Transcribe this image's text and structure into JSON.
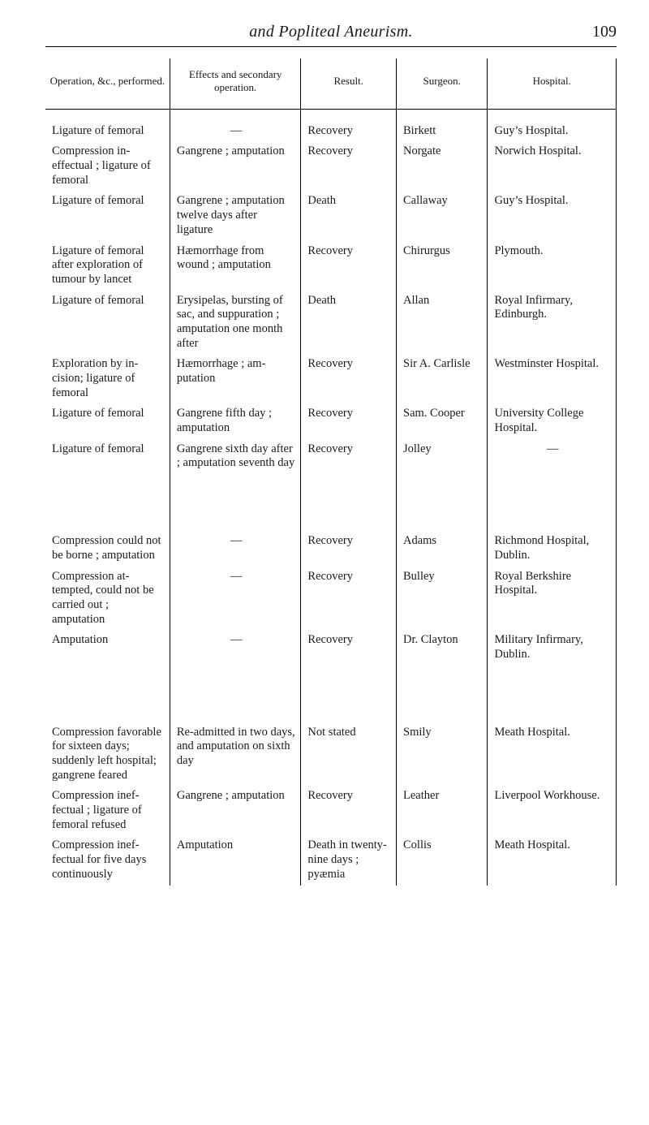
{
  "page": {
    "running_title": "and Popliteal Aneurism.",
    "page_number": "109"
  },
  "table": {
    "headers": {
      "operation": "Operation, &c., performed.",
      "effects": "Effects and secondary operation.",
      "result": "Result.",
      "surgeon": "Surgeon.",
      "hospital": "Hospital."
    },
    "rows": [
      {
        "operation": "Ligature of femoral",
        "effects": "—",
        "result": "Recovery",
        "surgeon": "Birkett",
        "hospital": "Guy’s Hospital."
      },
      {
        "operation": "Compression in­effectual ; ligature of femoral",
        "effects": "Gangrene ; amputa­tion",
        "result": "Recovery",
        "surgeon": "Norgate",
        "hospital": "Norwich Hospital."
      },
      {
        "operation": "Ligature of femoral",
        "effects": "Gangrene ; amputa­tion twelve days after ligature",
        "result": "Death",
        "surgeon": "Callaway",
        "hospital": "Guy’s Hospital."
      },
      {
        "operation": "Ligature of femoral after exploration of tumour by lancet",
        "effects": "Hæmorrhage from wound ; amputa­tion",
        "result": "Recovery",
        "surgeon": "Chirurgus",
        "hospital": "Plymouth."
      },
      {
        "operation": "Ligature of femoral",
        "effects": "Erysipelas, bursting of sac, and suppu­ration ; amputa­tion one month after",
        "result": "Death",
        "surgeon": "Allan",
        "hospital": "Royal Infirmary, Edinburgh."
      },
      {
        "operation": "Exploration by in­cision; ligature of femoral",
        "effects": "Hæmorrhage ; am­putation",
        "result": "Recovery",
        "surgeon": "Sir A. Carlisle",
        "hospital": "Westminster Hos­pital."
      },
      {
        "operation": "Ligature of femoral",
        "effects": "Gangrene fifth day ; amputation",
        "result": "Recovery",
        "surgeon": "Sam. Cooper",
        "hospital": "University College Hospital."
      },
      {
        "operation": "Ligature of femoral",
        "effects": "Gangrene sixth day after ; amputation seventh day",
        "result": "Recovery",
        "surgeon": "Jolley",
        "hospital": "—"
      }
    ],
    "rows2": [
      {
        "operation": "Compression could not be borne ; am­putation",
        "effects": "—",
        "result": "Recovery",
        "surgeon": "Adams",
        "hospital": "Richmond Hospital, Dublin."
      },
      {
        "operation": "Compression at­tempted, could not be carried out ; amputation",
        "effects": "—",
        "result": "Recovery",
        "surgeon": "Bulley",
        "hospital": "Royal Berkshire Hospital."
      },
      {
        "operation": "Amputation",
        "effects": "—",
        "result": "Recovery",
        "surgeon": "Dr. Clayton",
        "hospital": "Military Infirmary, Dublin."
      }
    ],
    "rows3": [
      {
        "operation": "Compression favor­able for sixteen days; suddenly left hospital; gangrene feared",
        "effects": "Re-admitted in two days, and amputa­tion on sixth day",
        "result": "Not stated",
        "surgeon": "Smily",
        "hospital": "Meath Hospital."
      },
      {
        "operation": "Compression inef­fectual ; ligature of femoral re­fused",
        "effects": "Gangrene ; ampu­tation",
        "result": "Recovery",
        "surgeon": "Leather",
        "hospital": "Liverpool Work­house."
      },
      {
        "operation": "Compression inef­fectual for five days continuously",
        "effects": "Amputation",
        "result": "Death in twen­ty-nine days ; pyæmia",
        "surgeon": "Collis",
        "hospital": "Meath Hospital."
      }
    ]
  }
}
